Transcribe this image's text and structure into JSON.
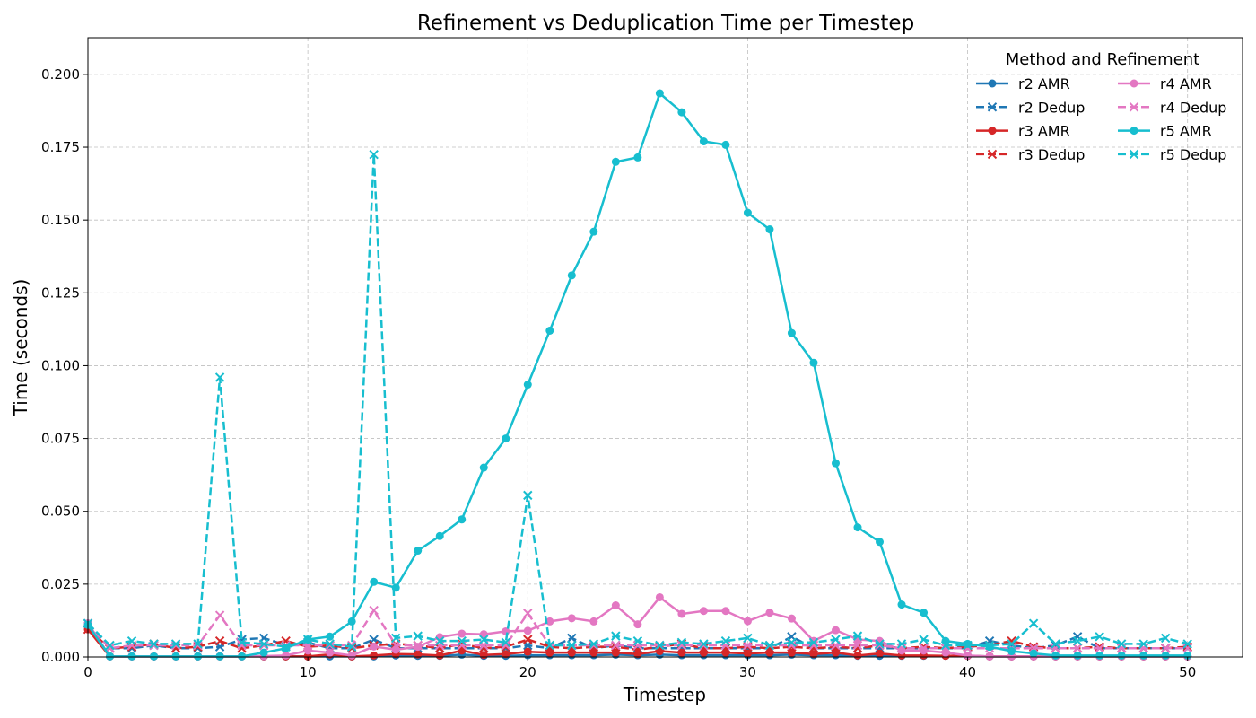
{
  "chart_data": {
    "type": "line",
    "title": "Refinement vs Deduplication Time per Timestep",
    "xlabel": "Timestep",
    "ylabel": "Time (seconds)",
    "xlim": [
      0,
      52.5
    ],
    "ylim": [
      0,
      0.2126
    ],
    "xticks": [
      0,
      10,
      20,
      30,
      40,
      50
    ],
    "xtick_labels": [
      "0",
      "10",
      "20",
      "30",
      "40",
      "50"
    ],
    "yticks": [
      0,
      0.025,
      0.05,
      0.075,
      0.1,
      0.125,
      0.15,
      0.175,
      0.2
    ],
    "ytick_labels": [
      "0.000",
      "0.025",
      "0.050",
      "0.075",
      "0.100",
      "0.125",
      "0.150",
      "0.175",
      "0.200"
    ],
    "grid": true,
    "legend": {
      "title": "Method and Refinement",
      "placement": "top-right",
      "columns": 2
    },
    "x": [
      0,
      1,
      2,
      3,
      4,
      5,
      6,
      7,
      8,
      9,
      10,
      11,
      12,
      13,
      14,
      15,
      16,
      17,
      18,
      19,
      20,
      21,
      22,
      23,
      24,
      25,
      26,
      27,
      28,
      29,
      30,
      31,
      32,
      33,
      34,
      35,
      36,
      37,
      38,
      39,
      40,
      41,
      42,
      43,
      44,
      45,
      46,
      47,
      48,
      49,
      50
    ],
    "series": [
      {
        "name": "r2 AMR",
        "color": "#1f77b4",
        "style": "solid",
        "marker": "circle",
        "values": [
          0.0115,
          0.0002,
          0.0002,
          0.0002,
          0.0002,
          0.0002,
          0.0002,
          0.0002,
          0.0002,
          0.0002,
          0.0002,
          0.0002,
          0.0002,
          0.0002,
          0.0005,
          0.0004,
          0.0004,
          0.0008,
          0.0004,
          0.0004,
          0.0006,
          0.0006,
          0.0006,
          0.0006,
          0.0008,
          0.0006,
          0.0008,
          0.0006,
          0.0006,
          0.0006,
          0.0006,
          0.0006,
          0.0008,
          0.0006,
          0.0006,
          0.0004,
          0.0004,
          0.0004,
          0.0004,
          0.0004,
          0.0004,
          0.0002,
          0.0002,
          0.0002,
          0.0002,
          0.0002,
          0.0002,
          0.0002,
          0.0002,
          0.0002,
          0.0002
        ]
      },
      {
        "name": "r2 Dedup",
        "color": "#1f77b4",
        "style": "dashed",
        "marker": "x",
        "values": [
          0.0115,
          0.003,
          0.003,
          0.004,
          0.003,
          0.003,
          0.0035,
          0.006,
          0.0065,
          0.004,
          0.005,
          0.003,
          0.003,
          0.006,
          0.003,
          0.003,
          0.003,
          0.003,
          0.003,
          0.003,
          0.004,
          0.003,
          0.0065,
          0.003,
          0.004,
          0.003,
          0.003,
          0.003,
          0.003,
          0.003,
          0.003,
          0.003,
          0.007,
          0.003,
          0.003,
          0.003,
          0.003,
          0.003,
          0.003,
          0.003,
          0.003,
          0.0055,
          0.004,
          0.003,
          0.004,
          0.007,
          0.003,
          0.003,
          0.003,
          0.003,
          0.003
        ]
      },
      {
        "name": "r3 AMR",
        "color": "#d62728",
        "style": "solid",
        "marker": "circle",
        "values": [
          0.0095,
          0.0002,
          0.0002,
          0.0002,
          0.0002,
          0.0002,
          0.0002,
          0.0002,
          0.0002,
          0.0002,
          0.0002,
          0.0009,
          0.0002,
          0.0005,
          0.001,
          0.0009,
          0.0005,
          0.0022,
          0.0007,
          0.001,
          0.0018,
          0.0015,
          0.0015,
          0.0015,
          0.0015,
          0.001,
          0.002,
          0.0015,
          0.0015,
          0.0015,
          0.0012,
          0.0015,
          0.0015,
          0.001,
          0.0015,
          0.0005,
          0.0012,
          0.0005,
          0.0005,
          0.0004,
          0.0004,
          0.0002,
          0.0002,
          0.0002,
          0.0002,
          0.0002,
          0.0002,
          0.0002,
          0.0002,
          0.0002,
          0.0002
        ]
      },
      {
        "name": "r3 Dedup",
        "color": "#d62728",
        "style": "dashed",
        "marker": "x",
        "values": [
          0.0095,
          0.003,
          0.0035,
          0.0045,
          0.003,
          0.0035,
          0.0055,
          0.003,
          0.004,
          0.0055,
          0.0035,
          0.004,
          0.003,
          0.004,
          0.0045,
          0.004,
          0.003,
          0.0045,
          0.003,
          0.0035,
          0.006,
          0.0035,
          0.003,
          0.0035,
          0.0035,
          0.0025,
          0.0035,
          0.0045,
          0.003,
          0.003,
          0.0035,
          0.003,
          0.0035,
          0.003,
          0.0035,
          0.003,
          0.004,
          0.003,
          0.0035,
          0.003,
          0.0035,
          0.004,
          0.0055,
          0.0035,
          0.003,
          0.003,
          0.0035,
          0.003,
          0.003,
          0.003,
          0.0035
        ]
      },
      {
        "name": "r4 AMR",
        "color": "#e377c2",
        "style": "solid",
        "marker": "circle",
        "values": [
          0.0115,
          0.0002,
          0.0002,
          0.0002,
          0.0002,
          0.0002,
          0.0002,
          0.0002,
          0.0003,
          0.0005,
          0.0022,
          0.0015,
          0.0005,
          0.0036,
          0.0025,
          0.0035,
          0.0068,
          0.008,
          0.0078,
          0.0088,
          0.009,
          0.0122,
          0.0133,
          0.0122,
          0.0177,
          0.0112,
          0.0205,
          0.0148,
          0.0158,
          0.0158,
          0.0123,
          0.0152,
          0.0132,
          0.0055,
          0.0092,
          0.006,
          0.0055,
          0.0022,
          0.0022,
          0.0015,
          0.0005,
          0.0002,
          0.0002,
          0.0002,
          0.0002,
          0.0002,
          0.0002,
          0.0002,
          0.0002,
          0.0002,
          0.0002
        ]
      },
      {
        "name": "r4 Dedup",
        "color": "#e377c2",
        "style": "dashed",
        "marker": "x",
        "values": [
          0.0115,
          0.003,
          0.004,
          0.004,
          0.004,
          0.004,
          0.0143,
          0.004,
          0.004,
          0.004,
          0.004,
          0.004,
          0.004,
          0.016,
          0.004,
          0.004,
          0.004,
          0.004,
          0.004,
          0.004,
          0.015,
          0.004,
          0.004,
          0.004,
          0.004,
          0.004,
          0.004,
          0.004,
          0.004,
          0.004,
          0.004,
          0.004,
          0.004,
          0.004,
          0.004,
          0.004,
          0.004,
          0.003,
          0.003,
          0.003,
          0.003,
          0.003,
          0.003,
          0.003,
          0.003,
          0.003,
          0.003,
          0.003,
          0.003,
          0.003,
          0.003
        ]
      },
      {
        "name": "r5 AMR",
        "color": "#17becf",
        "style": "solid",
        "marker": "circle",
        "values": [
          0.011,
          0.0002,
          0.0002,
          0.0002,
          0.0002,
          0.0002,
          0.0002,
          0.0002,
          0.0015,
          0.003,
          0.006,
          0.007,
          0.0122,
          0.0258,
          0.0238,
          0.0365,
          0.0415,
          0.0472,
          0.065,
          0.075,
          0.0935,
          0.112,
          0.131,
          0.146,
          0.17,
          0.1715,
          0.1935,
          0.187,
          0.177,
          0.1758,
          0.1525,
          0.1468,
          0.1112,
          0.101,
          0.0665,
          0.0445,
          0.0395,
          0.018,
          0.0152,
          0.0055,
          0.0045,
          0.0035,
          0.002,
          0.0012,
          0.0005,
          0.0005,
          0.0005,
          0.0005,
          0.0005,
          0.0005,
          0.0005
        ]
      },
      {
        "name": "r5 Dedup",
        "color": "#17becf",
        "style": "dashed",
        "marker": "x",
        "values": [
          0.0115,
          0.004,
          0.0055,
          0.0045,
          0.0045,
          0.0045,
          0.096,
          0.005,
          0.0045,
          0.0035,
          0.006,
          0.0045,
          0.0035,
          0.1725,
          0.0065,
          0.0072,
          0.0055,
          0.0055,
          0.006,
          0.005,
          0.0555,
          0.004,
          0.004,
          0.0045,
          0.0072,
          0.0055,
          0.004,
          0.005,
          0.0045,
          0.0055,
          0.0065,
          0.004,
          0.005,
          0.005,
          0.006,
          0.0072,
          0.0045,
          0.0045,
          0.006,
          0.004,
          0.004,
          0.004,
          0.0045,
          0.0115,
          0.0045,
          0.0055,
          0.007,
          0.0045,
          0.0045,
          0.0065,
          0.0045
        ]
      }
    ]
  }
}
